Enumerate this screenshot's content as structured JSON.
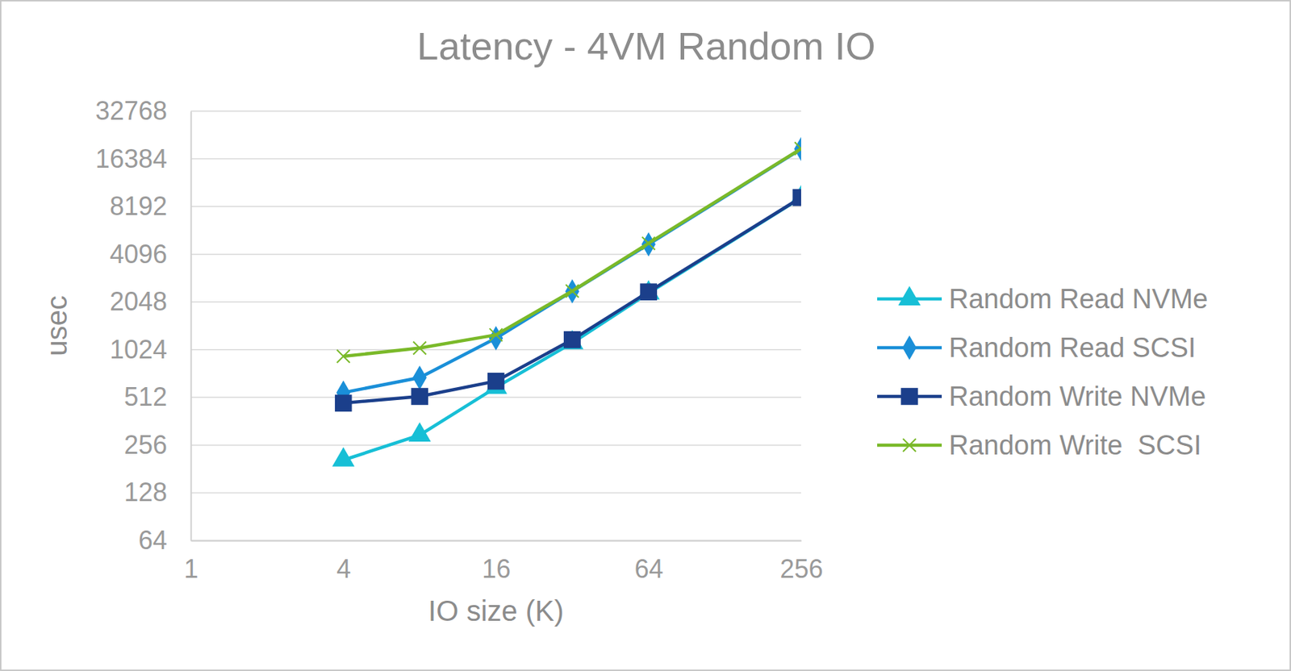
{
  "chart_data": {
    "type": "line",
    "title": "Latency - 4VM Random IO",
    "x_label": "IO size (K)",
    "y_label": "usec",
    "x": [
      4,
      8,
      16,
      32,
      64,
      256
    ],
    "xlim": [
      1,
      256
    ],
    "xticks": [
      1,
      4,
      16,
      64,
      256
    ],
    "ylim": [
      64,
      32768
    ],
    "yticks": [
      64,
      128,
      256,
      512,
      1024,
      2048,
      4096,
      8192,
      16384,
      32768
    ],
    "log": true,
    "grid": true,
    "legend": "right",
    "series": [
      {
        "name": "Random Read NVMe",
        "color": "#17bfd6",
        "marker": "triangle",
        "line_style": "solid",
        "values": [
          206,
          296,
          592,
          1130,
          2330,
          9300
        ]
      },
      {
        "name": "Random Read SCSI",
        "color": "#1a8fd8",
        "marker": "diamond",
        "line_style": "solid",
        "values": [
          549,
          682,
          1210,
          2390,
          4730,
          18900
        ]
      },
      {
        "name": "Random Write NVMe",
        "color": "#1b3f8b",
        "marker": "square",
        "line_style": "solid",
        "values": [
          471,
          519,
          648,
          1184,
          2370,
          9340
        ]
      },
      {
        "name": "Random Write  SCSI",
        "color": "#7ab929",
        "marker": "x",
        "line_style": "solid",
        "values": [
          930,
          1048,
          1270,
          2400,
          4800,
          19000
        ]
      }
    ]
  }
}
